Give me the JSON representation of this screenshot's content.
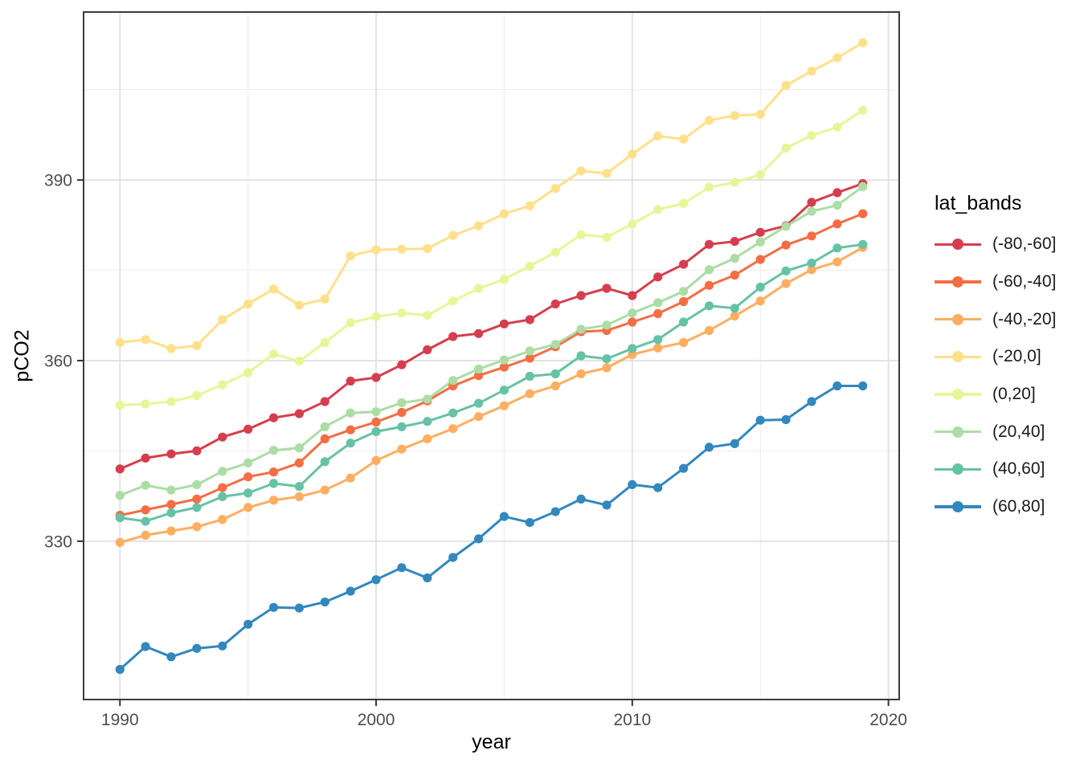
{
  "chart_data": {
    "type": "line",
    "title": "",
    "xlabel": "year",
    "ylabel": "pCO2",
    "legend_title": "lat_bands",
    "legend_position": "right",
    "grid": true,
    "point_markers": true,
    "xlim": [
      1988.58,
      2020.42
    ],
    "ylim": [
      303.7,
      417.9
    ],
    "x_ticks": [
      1990,
      2000,
      2010,
      2020
    ],
    "y_ticks": [
      330,
      360,
      390
    ],
    "x_minor_ticks": [
      1995,
      2005,
      2015
    ],
    "y_minor_ticks": [
      345,
      375,
      405
    ],
    "x": [
      1990,
      1991,
      1992,
      1993,
      1994,
      1995,
      1996,
      1997,
      1998,
      1999,
      2000,
      2001,
      2002,
      2003,
      2004,
      2005,
      2006,
      2007,
      2008,
      2009,
      2010,
      2011,
      2012,
      2013,
      2014,
      2015,
      2016,
      2017,
      2018,
      2019
    ],
    "series": [
      {
        "name": "(-80,-60]",
        "color": "#d53e4f",
        "values": [
          342.0,
          343.8,
          344.5,
          345.0,
          347.3,
          348.6,
          350.5,
          351.2,
          353.2,
          356.6,
          357.2,
          359.3,
          361.8,
          364.0,
          364.5,
          366.1,
          366.8,
          369.4,
          370.8,
          372.0,
          370.8,
          373.9,
          376.0,
          379.3,
          379.8,
          381.3,
          382.4,
          386.3,
          387.9,
          389.4
        ]
      },
      {
        "name": "(-60,-40]",
        "color": "#f46d43",
        "values": [
          334.3,
          335.2,
          336.1,
          337.0,
          338.9,
          340.7,
          341.5,
          343.0,
          347.0,
          348.5,
          349.8,
          351.4,
          353.3,
          355.8,
          357.5,
          358.9,
          360.4,
          362.3,
          364.8,
          365.0,
          366.4,
          367.8,
          369.8,
          372.5,
          374.2,
          376.8,
          379.2,
          380.7,
          382.7,
          384.4
        ]
      },
      {
        "name": "(-40,-20]",
        "color": "#fdae61",
        "values": [
          329.8,
          331.0,
          331.7,
          332.4,
          333.6,
          335.6,
          336.8,
          337.4,
          338.5,
          340.5,
          343.4,
          345.3,
          347.0,
          348.7,
          350.7,
          352.5,
          354.5,
          355.8,
          357.8,
          358.8,
          361.0,
          362.1,
          363.0,
          365.0,
          367.4,
          369.9,
          372.8,
          375.1,
          376.4,
          378.8
        ]
      },
      {
        "name": "(-20,0]",
        "color": "#fee08b",
        "values": [
          363.0,
          363.5,
          362.0,
          362.5,
          366.8,
          369.4,
          371.9,
          369.2,
          370.2,
          377.4,
          378.4,
          378.5,
          378.6,
          380.8,
          382.4,
          384.4,
          385.7,
          388.6,
          391.5,
          391.1,
          394.3,
          397.3,
          396.8,
          399.9,
          400.7,
          400.9,
          405.7,
          408.1,
          410.3,
          412.8
        ]
      },
      {
        "name": "(0,20]",
        "color": "#e6f598",
        "values": [
          352.6,
          352.8,
          353.2,
          354.2,
          356.0,
          358.0,
          361.1,
          359.9,
          363.0,
          366.3,
          367.3,
          367.9,
          367.5,
          369.9,
          372.0,
          373.5,
          375.7,
          378.0,
          380.9,
          380.5,
          382.7,
          385.1,
          386.1,
          388.8,
          389.6,
          390.9,
          395.3,
          397.4,
          398.8,
          401.6
        ]
      },
      {
        "name": "(20,40]",
        "color": "#abdda4",
        "values": [
          337.6,
          339.3,
          338.5,
          339.4,
          341.6,
          343.0,
          345.1,
          345.5,
          349.0,
          351.3,
          351.5,
          353.0,
          353.6,
          356.7,
          358.6,
          360.1,
          361.6,
          362.7,
          365.2,
          365.9,
          367.9,
          369.6,
          371.5,
          375.1,
          377.0,
          379.7,
          382.3,
          384.8,
          385.8,
          388.9
        ]
      },
      {
        "name": "(40,60]",
        "color": "#66c2a5",
        "values": [
          333.9,
          333.3,
          334.7,
          335.6,
          337.4,
          338.0,
          339.6,
          339.1,
          343.2,
          346.3,
          348.2,
          349.0,
          349.9,
          351.3,
          352.9,
          355.1,
          357.4,
          357.8,
          360.8,
          360.3,
          362.0,
          363.5,
          366.4,
          369.1,
          368.7,
          372.2,
          374.9,
          376.2,
          378.7,
          379.3
        ]
      },
      {
        "name": "(60,80]",
        "color": "#3288bd",
        "values": [
          308.7,
          312.5,
          310.8,
          312.2,
          312.6,
          316.2,
          319.0,
          318.9,
          319.9,
          321.7,
          323.6,
          325.6,
          323.9,
          327.3,
          330.4,
          334.1,
          333.1,
          334.9,
          337.0,
          336.0,
          339.4,
          338.9,
          342.1,
          345.6,
          346.2,
          350.1,
          350.2,
          353.2,
          355.8,
          355.8
        ]
      }
    ]
  }
}
